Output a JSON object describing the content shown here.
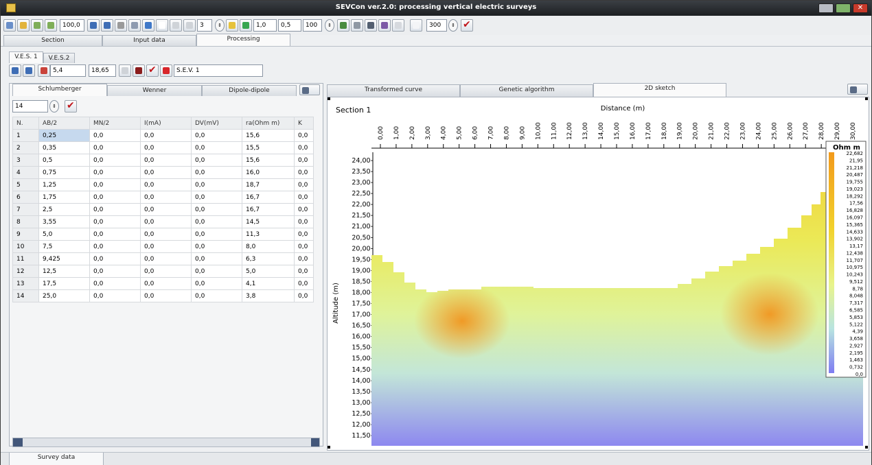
{
  "title": "SEVCon ver.2.0: processing vertical electric surveys",
  "toolbar": {
    "zoom": "100,0",
    "layers": "3",
    "val1": "1,0",
    "val2": "0,5",
    "val3": "100",
    "val4": "300"
  },
  "main_tabs": [
    "Section",
    "Input data",
    "Processing"
  ],
  "ves_tabs": [
    "V.E.S. 1",
    "V.E.S.2"
  ],
  "ves": {
    "x": "5,4",
    "y": "18,65",
    "name": "S.E.V. 1"
  },
  "array_tabs": [
    "Schlumberger",
    "Wenner",
    "Dipole-dipole"
  ],
  "rows_count": "14",
  "table": {
    "headers": [
      "N.",
      "AB/2",
      "MN/2",
      "I(mA)",
      "DV(mV)",
      "ra(Ohm m)",
      "K"
    ],
    "rows": [
      [
        "1",
        "0,25",
        "0,0",
        "0,0",
        "0,0",
        "15,6",
        "0,0"
      ],
      [
        "2",
        "0,35",
        "0,0",
        "0,0",
        "0,0",
        "15,5",
        "0,0"
      ],
      [
        "3",
        "0,5",
        "0,0",
        "0,0",
        "0,0",
        "15,6",
        "0,0"
      ],
      [
        "4",
        "0,75",
        "0,0",
        "0,0",
        "0,0",
        "16,0",
        "0,0"
      ],
      [
        "5",
        "1,25",
        "0,0",
        "0,0",
        "0,0",
        "18,7",
        "0,0"
      ],
      [
        "6",
        "1,75",
        "0,0",
        "0,0",
        "0,0",
        "16,7",
        "0,0"
      ],
      [
        "7",
        "2,5",
        "0,0",
        "0,0",
        "0,0",
        "16,7",
        "0,0"
      ],
      [
        "8",
        "3,55",
        "0,0",
        "0,0",
        "0,0",
        "14,5",
        "0,0"
      ],
      [
        "9",
        "5,0",
        "0,0",
        "0,0",
        "0,0",
        "11,3",
        "0,0"
      ],
      [
        "10",
        "7,5",
        "0,0",
        "0,0",
        "0,0",
        "8,0",
        "0,0"
      ],
      [
        "11",
        "9,425",
        "0,0",
        "0,0",
        "0,0",
        "6,3",
        "0,0"
      ],
      [
        "12",
        "12,5",
        "0,0",
        "0,0",
        "0,0",
        "5,0",
        "0,0"
      ],
      [
        "13",
        "17,5",
        "0,0",
        "0,0",
        "0,0",
        "4,1",
        "0,0"
      ],
      [
        "14",
        "25,0",
        "0,0",
        "0,0",
        "0,0",
        "3,8",
        "0,0"
      ]
    ]
  },
  "right_tabs": [
    "Transformed curve",
    "Genetic algorithm",
    "2D sketch"
  ],
  "sketch": {
    "section": "Section 1",
    "xlabel": "Distance (m)",
    "ylabel": "Altitude (m)",
    "legend_title": "Ohm m",
    "xticks": [
      "0,00",
      "1,00",
      "2,00",
      "3,00",
      "4,00",
      "5,00",
      "6,00",
      "7,00",
      "8,00",
      "9,00",
      "10,00",
      "11,00",
      "12,00",
      "13,00",
      "14,00",
      "15,00",
      "16,00",
      "17,00",
      "18,00",
      "19,00",
      "20,00",
      "21,00",
      "22,00",
      "23,00",
      "24,00",
      "25,00",
      "26,00",
      "27,00",
      "28,00",
      "29,00",
      "30,00"
    ],
    "yticks": [
      "24,00-",
      "23,50-",
      "23,00-",
      "22,50-",
      "22,00-",
      "21,50-",
      "21,00-",
      "20,50-",
      "20,00-",
      "19,50-",
      "19,00-",
      "18,50-",
      "18,00-",
      "17,50-",
      "17,00-",
      "16,50-",
      "16,00-",
      "15,50-",
      "15,00-",
      "14,50-",
      "14,00-",
      "13,50-",
      "13,00-",
      "12,50-",
      "12,00-",
      "11,50-"
    ],
    "legend_values": [
      "22,682",
      "21,95",
      "21,218",
      "20,487",
      "19,755",
      "19,023",
      "18,292",
      "17,56",
      "16,828",
      "16,097",
      "15,365",
      "14,633",
      "13,902",
      "13,17",
      "12,438",
      "11,707",
      "10,975",
      "10,243",
      "9,512",
      "8,78",
      "8,048",
      "7,317",
      "6,585",
      "5,853",
      "5,122",
      "4,39",
      "3,658",
      "2,927",
      "2,195",
      "1,463",
      "0,732",
      "0,0"
    ]
  },
  "bottom_tab": "Survey data",
  "colors": {
    "low": "#8a82f0",
    "mid": "#e9f07a",
    "high": "#f2a024"
  }
}
